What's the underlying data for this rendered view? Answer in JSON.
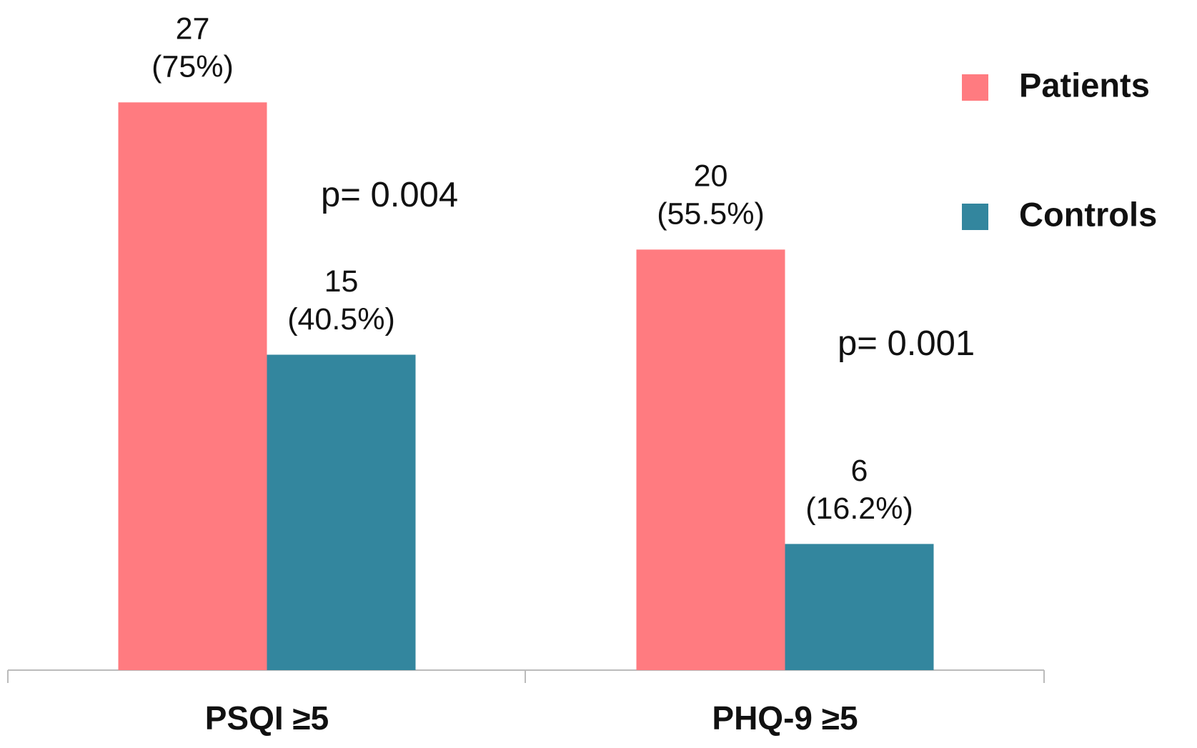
{
  "chart_data": {
    "type": "bar",
    "categories": [
      "PSQI ≥5",
      "PHQ-9 ≥5"
    ],
    "series": [
      {
        "name": "Patients",
        "color": "#ff7b80",
        "values": [
          27,
          20
        ],
        "value_labels": [
          "27",
          "20"
        ],
        "percent_labels": [
          "(75%)",
          "(55.5%)"
        ]
      },
      {
        "name": "Controls",
        "color": "#33869e",
        "values": [
          15,
          6
        ],
        "value_labels": [
          "15",
          "6"
        ],
        "percent_labels": [
          "(40.5%)",
          "(16.2%)"
        ]
      }
    ],
    "annotations": [
      "p= 0.004",
      "p= 0.001"
    ],
    "ylim": [
      0,
      30
    ],
    "legend": "upper right"
  }
}
